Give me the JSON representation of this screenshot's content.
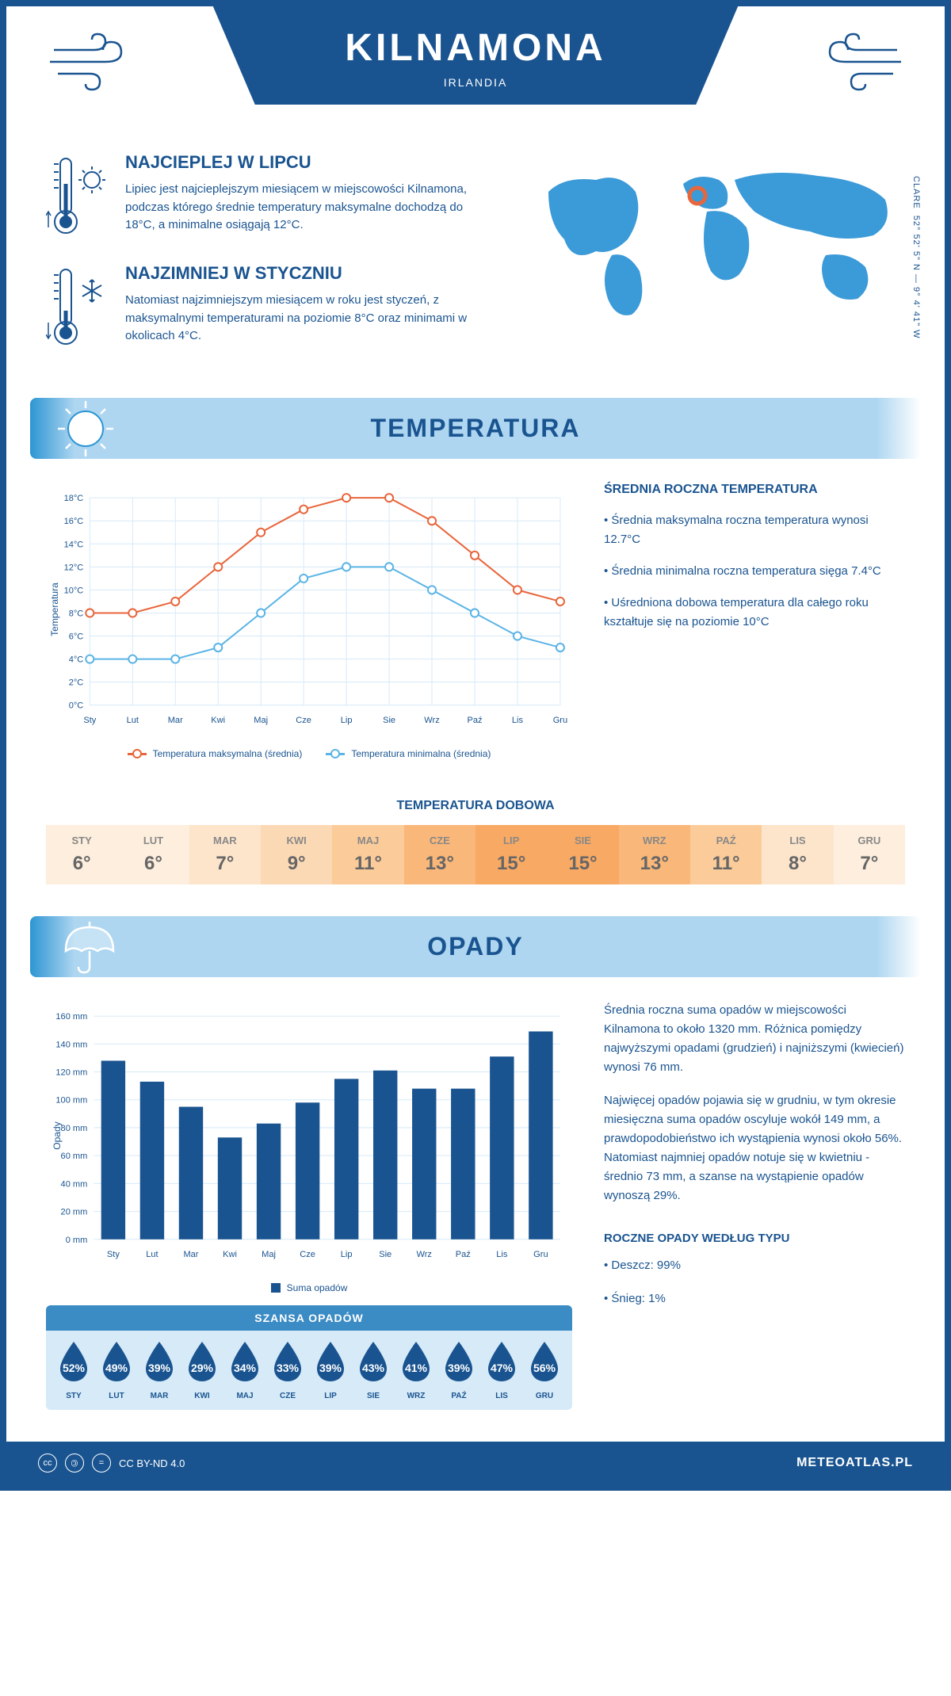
{
  "header": {
    "city": "KILNAMONA",
    "country": "IRLANDIA",
    "region": "CLARE",
    "coords": "52° 52' 5\" N — 9° 4' 41\" W"
  },
  "intro": {
    "hot": {
      "title": "NAJCIEPLEJ W LIPCU",
      "text": "Lipiec jest najcieplejszym miesiącem w miejscowości Kilnamona, podczas którego średnie temperatury maksymalne dochodzą do 18°C, a minimalne osiągają 12°C."
    },
    "cold": {
      "title": "NAJZIMNIEJ W STYCZNIU",
      "text": "Natomiast najzimniejszym miesiącem w roku jest styczeń, z maksymalnymi temperaturami na poziomie 8°C oraz minimami w okolicach 4°C."
    }
  },
  "colors": {
    "brand": "#1a5490",
    "lightblue": "#aed6f1",
    "chart_max": "#e8663c",
    "chart_min": "#5bb4e5",
    "bar": "#1a5490",
    "grid": "#d0d0d0"
  },
  "temp_section": {
    "title": "TEMPERATURA",
    "chart": {
      "type": "line",
      "months": [
        "Sty",
        "Lut",
        "Mar",
        "Kwi",
        "Maj",
        "Cze",
        "Lip",
        "Sie",
        "Wrz",
        "Paź",
        "Lis",
        "Gru"
      ],
      "max_series": [
        8,
        8,
        9,
        12,
        15,
        17,
        18,
        18,
        16,
        13,
        10,
        9
      ],
      "min_series": [
        4,
        4,
        4,
        5,
        8,
        11,
        12,
        12,
        10,
        8,
        6,
        5
      ],
      "ylabel": "Temperatura",
      "ylim": [
        0,
        18
      ],
      "ytick_step": 2,
      "ytick_suffix": "°C",
      "max_color": "#e8663c",
      "min_color": "#5bb4e5",
      "grid_color": "#d6eaf8",
      "line_width": 2,
      "marker_size": 5
    },
    "legend": {
      "max": "Temperatura maksymalna (średnia)",
      "min": "Temperatura minimalna (średnia)"
    },
    "info": {
      "title": "ŚREDNIA ROCZNA TEMPERATURA",
      "b1": "• Średnia maksymalna roczna temperatura wynosi 12.7°C",
      "b2": "• Średnia minimalna roczna temperatura sięga 7.4°C",
      "b3": "• Uśredniona dobowa temperatura dla całego roku kształtuje się na poziomie 10°C"
    },
    "daily": {
      "title": "TEMPERATURA DOBOWA",
      "months": [
        "STY",
        "LUT",
        "MAR",
        "KWI",
        "MAJ",
        "CZE",
        "LIP",
        "SIE",
        "WRZ",
        "PAŹ",
        "LIS",
        "GRU"
      ],
      "values": [
        "6°",
        "6°",
        "7°",
        "9°",
        "11°",
        "13°",
        "15°",
        "15°",
        "13°",
        "11°",
        "8°",
        "7°"
      ],
      "cell_colors": [
        "#fdeedd",
        "#fdeedd",
        "#fde5cc",
        "#fcd9b5",
        "#fbcb9a",
        "#f9b77a",
        "#f8a963",
        "#f8a963",
        "#f9b77a",
        "#fbcb9a",
        "#fde5cc",
        "#fdeedd"
      ]
    }
  },
  "precip_section": {
    "title": "OPADY",
    "chart": {
      "type": "bar",
      "months": [
        "Sty",
        "Lut",
        "Mar",
        "Kwi",
        "Maj",
        "Cze",
        "Lip",
        "Sie",
        "Wrz",
        "Paź",
        "Lis",
        "Gru"
      ],
      "values": [
        128,
        113,
        95,
        73,
        83,
        98,
        115,
        121,
        108,
        108,
        131,
        149
      ],
      "ylabel": "Opady",
      "ylim": [
        0,
        160
      ],
      "ytick_step": 20,
      "ytick_suffix": " mm",
      "bar_color": "#1a5490",
      "grid_color": "#d6eaf8",
      "bar_width": 0.62,
      "legend": "Suma opadów"
    },
    "info": {
      "p1": "Średnia roczna suma opadów w miejscowości Kilnamona to około 1320 mm. Różnica pomiędzy najwyższymi opadami (grudzień) i najniższymi (kwiecień) wynosi 76 mm.",
      "p2": "Najwięcej opadów pojawia się w grudniu, w tym okresie miesięczna suma opadów oscyluje wokół 149 mm, a prawdopodobieństwo ich wystąpienia wynosi około 56%. Natomiast najmniej opadów notuje się w kwietniu - średnio 73 mm, a szanse na wystąpienie opadów wynoszą 29%.",
      "type_title": "ROCZNE OPADY WEDŁUG TYPU",
      "rain": "• Deszcz: 99%",
      "snow": "• Śnieg: 1%"
    },
    "chance": {
      "title": "SZANSA OPADÓW",
      "months": [
        "STY",
        "LUT",
        "MAR",
        "KWI",
        "MAJ",
        "CZE",
        "LIP",
        "SIE",
        "WRZ",
        "PAŹ",
        "LIS",
        "GRU"
      ],
      "values": [
        "52%",
        "49%",
        "39%",
        "29%",
        "34%",
        "33%",
        "39%",
        "43%",
        "41%",
        "39%",
        "47%",
        "56%"
      ],
      "drop_color": "#1a5490"
    }
  },
  "footer": {
    "license": "CC BY-ND 4.0",
    "site": "METEOATLAS.PL"
  }
}
